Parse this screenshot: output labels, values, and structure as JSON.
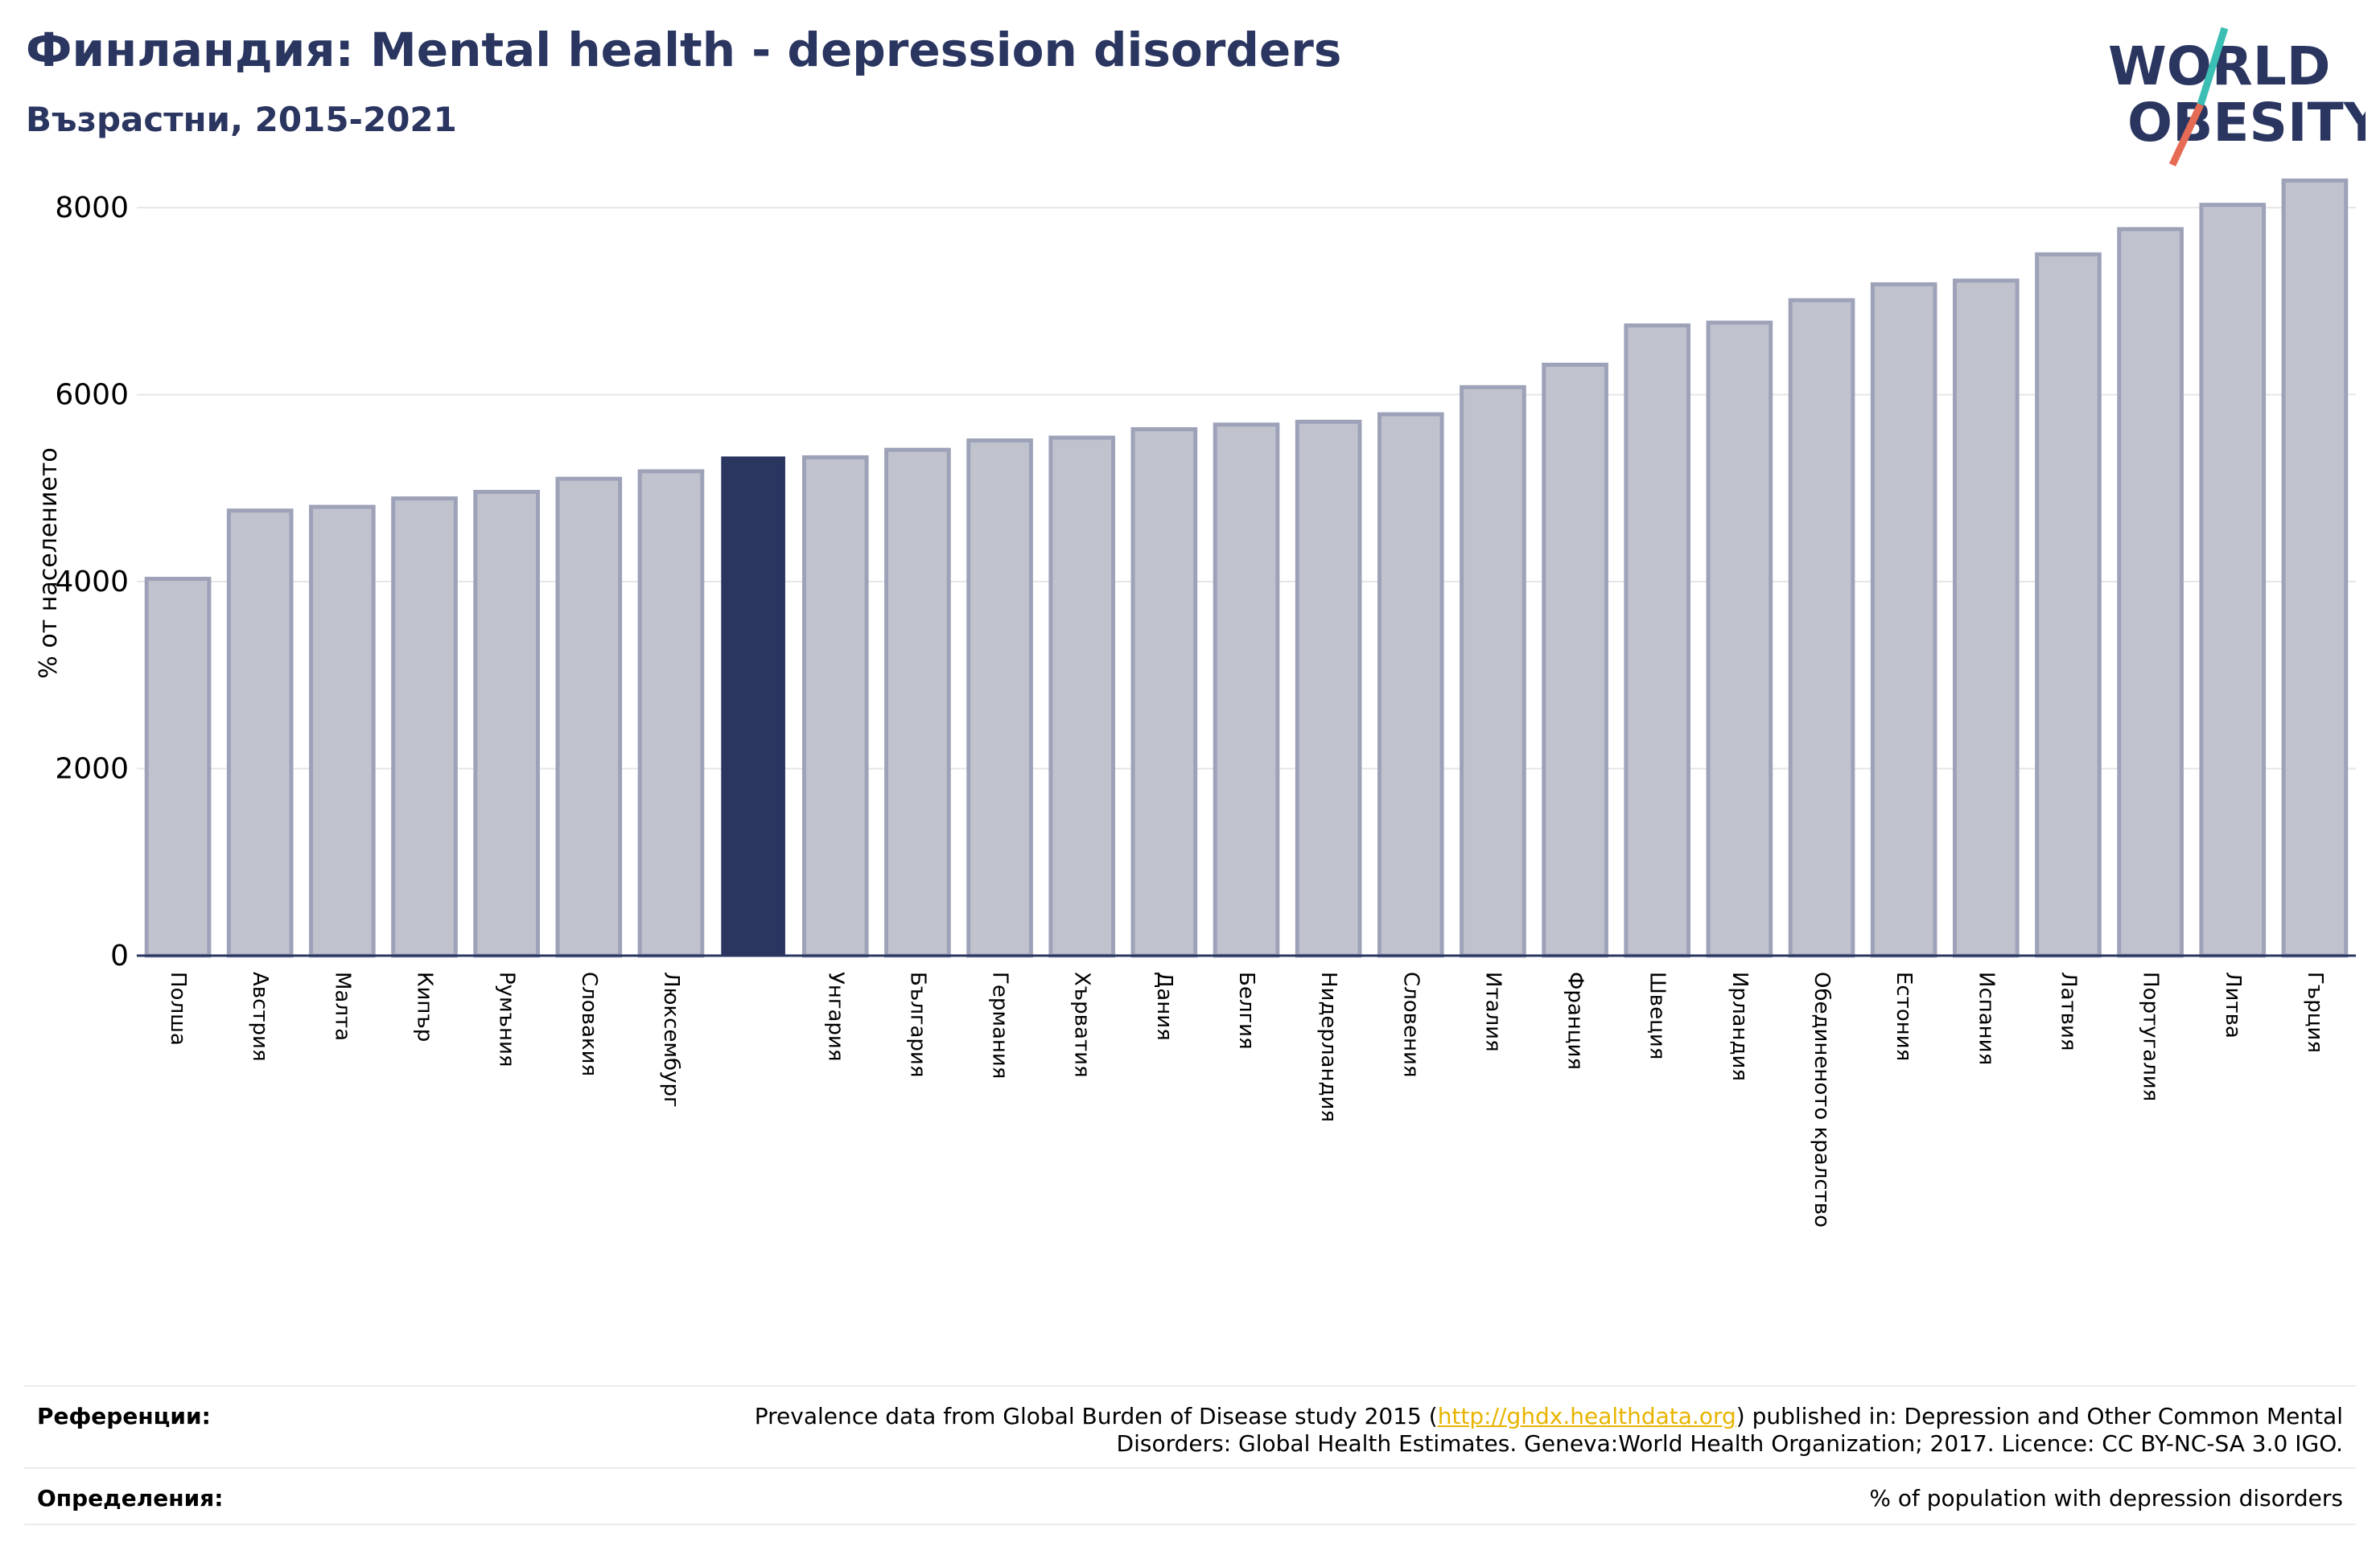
{
  "header": {
    "title": "Финландия: Mental health - depression disorders",
    "subtitle": "Възрастни, 2015-2021"
  },
  "logo": {
    "line1": "WORLD",
    "line2": "OBESITY",
    "colors": {
      "text": "#2a3560",
      "slash_top": "#3bbfb4",
      "slash_bottom": "#e66b55"
    }
  },
  "chart_data": {
    "type": "bar",
    "title": "",
    "ylabel": "% от населението",
    "xlabel": "",
    "ylim": [
      0,
      8500
    ],
    "yticks": [
      0,
      2000,
      4000,
      6000,
      8000
    ],
    "grid": true,
    "highlight_index": 7,
    "colors": {
      "bar": "#c0c3ce",
      "bar_edge": "#9da2b8",
      "highlight": "#2a3560",
      "grid": "#e6e6ea",
      "axis": "#2a3560"
    },
    "categories": [
      "Полша",
      "Австрия",
      "Малта",
      "Кипър",
      "Румъния",
      "Словакия",
      "Люксембург",
      "",
      "Унгария",
      "България",
      "Германия",
      "Хърватия",
      "Дания",
      "Белгия",
      "Нидерландия",
      "Словения",
      "Италия",
      "Франция",
      "Швеция",
      "Ирландия",
      "Обединеното кралство",
      "Естония",
      "Испания",
      "Латвия",
      "Португалия",
      "Литва",
      "Гърция"
    ],
    "values": [
      4030,
      4760,
      4800,
      4890,
      4960,
      5100,
      5180,
      5330,
      5330,
      5410,
      5510,
      5540,
      5630,
      5680,
      5710,
      5790,
      6080,
      6320,
      6740,
      6770,
      7010,
      7180,
      7220,
      7500,
      7770,
      8030,
      8290
    ]
  },
  "footer": {
    "references_label": "Референции:",
    "references_pre": "Prevalence data from Global Burden of Disease study 2015 (",
    "references_link": "http://ghdx.healthdata.org",
    "references_post": ") published in: Depression and Other Common Mental",
    "references_line2": "Disorders: Global Health Estimates. Geneva:World Health Organization; 2017. Licence: CC BY-NC-SA 3.0 IGO.",
    "definitions_label": "Определения:",
    "definitions_text": "% of population with depression disorders"
  }
}
